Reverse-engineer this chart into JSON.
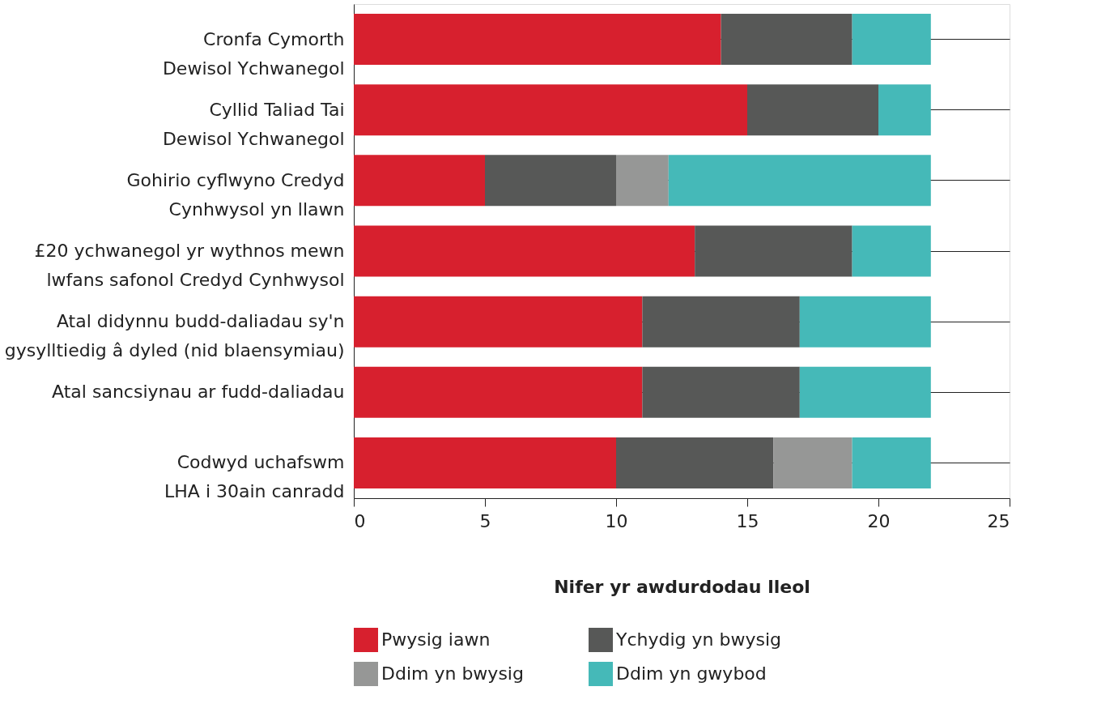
{
  "chart_data": {
    "type": "bar",
    "orientation": "horizontal",
    "stacked": true,
    "categories": [
      "Cronfa Cymorth\nDewisol Ychwanegol",
      "Cyllid Taliad Tai\nDewisol Ychwanegol",
      "Gohirio cyflwyno Credyd\nCynhwysol yn llawn",
      "£20 ychwanegol yr wythnos mewn\nlwfans safonol Credyd Cynhwysol",
      "Atal didynnu budd-daliadau sy'n\ngysylltiedig â dyled (nid blaensymiau)",
      "Atal sancsiynau ar fudd-daliadau",
      "Codwyd uchafswm\nLHA i 30ain canradd"
    ],
    "series": [
      {
        "name": "Pwysig iawn",
        "color": "#d7202e",
        "values": [
          14,
          15,
          5,
          13,
          11,
          11,
          10
        ]
      },
      {
        "name": "Ychydig yn bwysig",
        "color": "#575857",
        "values": [
          5,
          5,
          5,
          6,
          6,
          6,
          6
        ]
      },
      {
        "name": "Ddim yn bwysig",
        "color": "#969796",
        "values": [
          0,
          0,
          2,
          0,
          0,
          0,
          3
        ]
      },
      {
        "name": "Ddim yn gwybod",
        "color": "#45b9b8",
        "values": [
          3,
          2,
          10,
          3,
          5,
          5,
          3
        ]
      }
    ],
    "xlabel": "Nifer yr awdurdodau lleol",
    "xlim": [
      0,
      25
    ],
    "xticks": [
      0,
      5,
      10,
      15,
      20,
      25
    ],
    "grid": "y",
    "legend": "bottom"
  }
}
